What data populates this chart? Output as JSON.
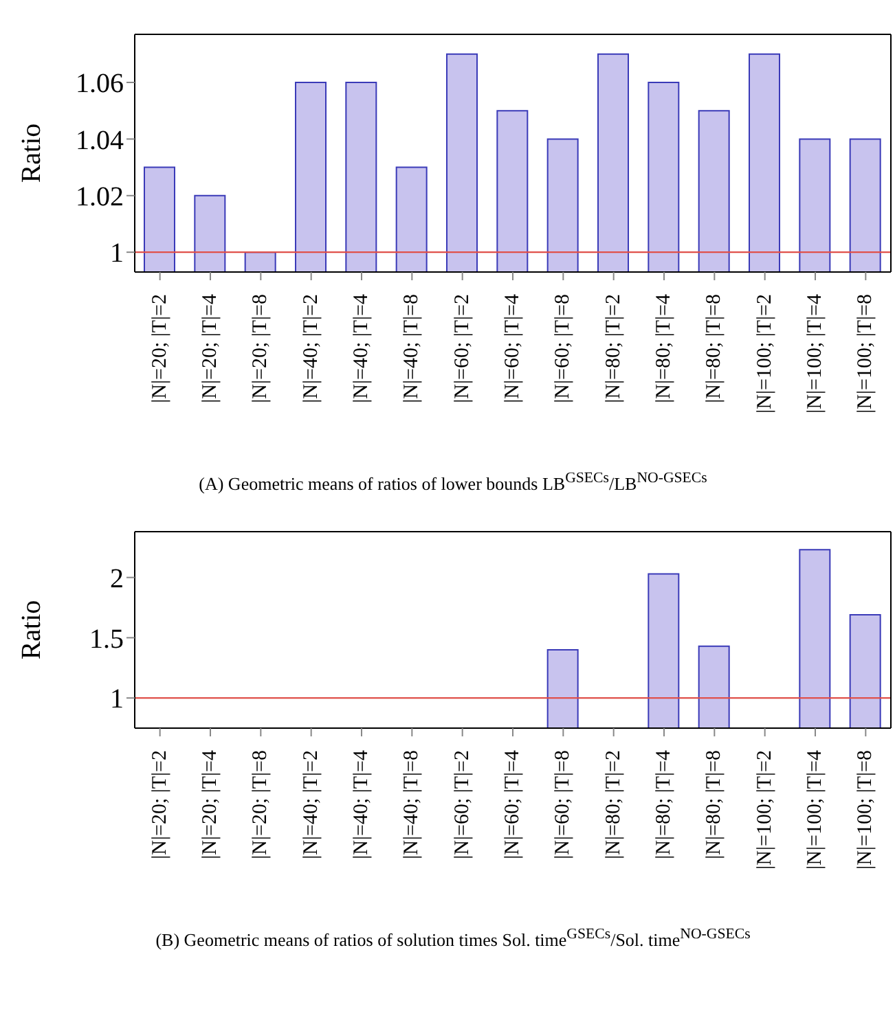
{
  "chart_data": [
    {
      "type": "bar",
      "ylabel": "Ratio",
      "categories": [
        "|N|=20; |T|=2",
        "|N|=20; |T|=4",
        "|N|=20; |T|=8",
        "|N|=40; |T|=2",
        "|N|=40; |T|=4",
        "|N|=40; |T|=8",
        "|N|=60; |T|=2",
        "|N|=60; |T|=4",
        "|N|=60; |T|=8",
        "|N|=80; |T|=2",
        "|N|=80; |T|=4",
        "|N|=80; |T|=8",
        "|N|=100; |T|=2",
        "|N|=100; |T|=4",
        "|N|=100; |T|=8"
      ],
      "series": [
        {
          "color": "#c8c3ee",
          "values": [
            1.03,
            1.02,
            1.0,
            1.06,
            1.06,
            1.03,
            1.07,
            1.05,
            1.04,
            1.07,
            1.06,
            1.05,
            1.07,
            1.04,
            1.04
          ]
        }
      ],
      "ylim": [
        0.993,
        1.077
      ],
      "yticks": [
        1,
        1.02,
        1.04,
        1.06
      ],
      "grid": false,
      "legend": false,
      "ref_lines": [
        {
          "axis": "y",
          "value": 1,
          "color": "#e0504a"
        }
      ],
      "annotations": [
        "(A) Geometric means of ratios of lower bounds LB$^{GSECs}$/LB$^{NO-GSECs}$"
      ]
    },
    {
      "type": "bar",
      "ylabel": "Ratio",
      "categories": [
        "|N|=20; |T|=2",
        "|N|=20; |T|=4",
        "|N|=20; |T|=8",
        "|N|=40; |T|=2",
        "|N|=40; |T|=4",
        "|N|=40; |T|=8",
        "|N|=60; |T|=2",
        "|N|=60; |T|=4",
        "|N|=60; |T|=8",
        "|N|=80; |T|=2",
        "|N|=80; |T|=4",
        "|N|=80; |T|=8",
        "|N|=100; |T|=2",
        "|N|=100; |T|=4",
        "|N|=100; |T|=8"
      ],
      "series": [
        {
          "color": "#c8c3ee",
          "values": [
            null,
            null,
            null,
            null,
            null,
            null,
            null,
            null,
            1.4,
            null,
            2.03,
            1.43,
            null,
            2.23,
            1.69
          ]
        }
      ],
      "ylim": [
        0.75,
        2.38
      ],
      "yticks": [
        1,
        1.5,
        2
      ],
      "grid": false,
      "legend": false,
      "ref_lines": [
        {
          "axis": "y",
          "value": 1,
          "color": "#e0504a"
        }
      ],
      "annotations": [
        "(B) Geometric means of ratios of solution times Sol. time$^{GSECs}$/Sol. time$^{NO-GSECs}$"
      ]
    }
  ]
}
